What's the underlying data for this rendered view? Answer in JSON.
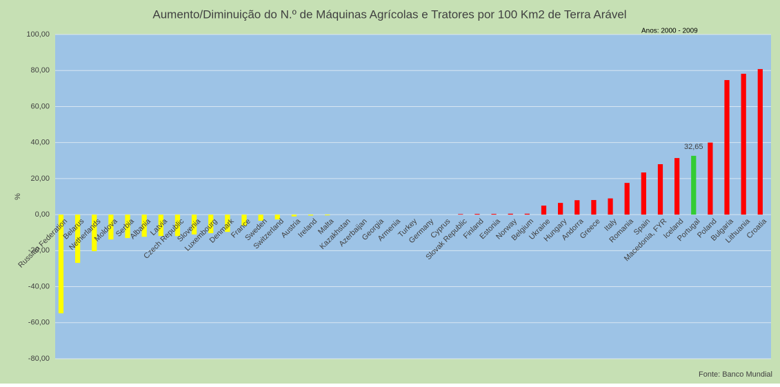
{
  "chart_data": {
    "type": "bar",
    "title": "Aumento/Diminuição do N.º de Máquinas Agrícolas e Tratores por 100 Km2 de Terra Arável",
    "annotation": "Anos: 2000 - 2009",
    "source": "Fonte:  Banco Mundial",
    "y_label": "%",
    "categories": [
      "Russian Federation",
      "Belarus",
      "Netherlands",
      "Moldova",
      "Serbia",
      "Albania",
      "Latvia",
      "Czech Republic",
      "Slovenia",
      "Luxembourg",
      "Denmark",
      "France",
      "Sweden",
      "Switzerland",
      "Austria",
      "Ireland",
      "Malta",
      "Kazakhstan",
      "Azerbaijan",
      "Georgia",
      "Armenia",
      "Turkey",
      "Germany",
      "Cyprus",
      "Slovak Republic",
      "Finland",
      "Estonia",
      "Norway",
      "Belgium",
      "Ukraine",
      "Hungary",
      "Andorra",
      "Greece",
      "Italy",
      "Romania",
      "Spain",
      "Macedonia, FYR",
      "Iceland",
      "Portugal",
      "Poland",
      "Bulgaria",
      "Lithuania",
      "Croatia"
    ],
    "values": [
      -54.8,
      -26.8,
      -20.3,
      -13.8,
      -13,
      -12.3,
      -11.9,
      -11.9,
      -11,
      -10.3,
      -9.6,
      -6.1,
      -3.4,
      -2.7,
      -1,
      -0.5,
      -0.4,
      0,
      0,
      0,
      0,
      0,
      0,
      0,
      0.3,
      0.4,
      0.4,
      0.5,
      0.5,
      5,
      6.5,
      8,
      8.1,
      9,
      17.6,
      23.4,
      28,
      31.4,
      32.65,
      40,
      74.7,
      78.2,
      80.8
    ],
    "value_labels": [
      null,
      null,
      null,
      null,
      null,
      null,
      null,
      null,
      null,
      null,
      null,
      null,
      null,
      null,
      null,
      null,
      null,
      null,
      null,
      null,
      null,
      null,
      null,
      null,
      null,
      null,
      null,
      null,
      null,
      null,
      null,
      null,
      null,
      null,
      null,
      null,
      null,
      null,
      "32,65",
      null,
      null,
      null,
      null
    ],
    "colors": [
      "#ffff00",
      "#ffff00",
      "#ffff00",
      "#ffff00",
      "#ffff00",
      "#ffff00",
      "#ffff00",
      "#ffff00",
      "#ffff00",
      "#ffff00",
      "#ffff00",
      "#ffff00",
      "#ffff00",
      "#ffff00",
      "#ffff00",
      "#ffff00",
      "#ffff00",
      "#ffff00",
      "#ffff00",
      "#ffff00",
      "#ffff00",
      "#ffff00",
      "#ffff00",
      "#ffff00",
      "#ff0000",
      "#ff0000",
      "#ff0000",
      "#ff0000",
      "#ff0000",
      "#ff0000",
      "#ff0000",
      "#ff0000",
      "#ff0000",
      "#ff0000",
      "#ff0000",
      "#ff0000",
      "#ff0000",
      "#ff0000",
      "#33cc33",
      "#ff0000",
      "#ff0000",
      "#ff0000",
      "#ff0000"
    ],
    "ylim": [
      -80,
      100
    ],
    "yticks": [
      {
        "value": -80,
        "label": "-80,00"
      },
      {
        "value": -60,
        "label": "-60,00"
      },
      {
        "value": -40,
        "label": "-40,00"
      },
      {
        "value": -20,
        "label": "-20,00"
      },
      {
        "value": 0,
        "label": "0,00"
      },
      {
        "value": 20,
        "label": "20,00"
      },
      {
        "value": 40,
        "label": "40,00"
      },
      {
        "value": 60,
        "label": "60,00"
      },
      {
        "value": 80,
        "label": "80,00"
      },
      {
        "value": 100,
        "label": "100,00"
      }
    ],
    "grid": true
  }
}
